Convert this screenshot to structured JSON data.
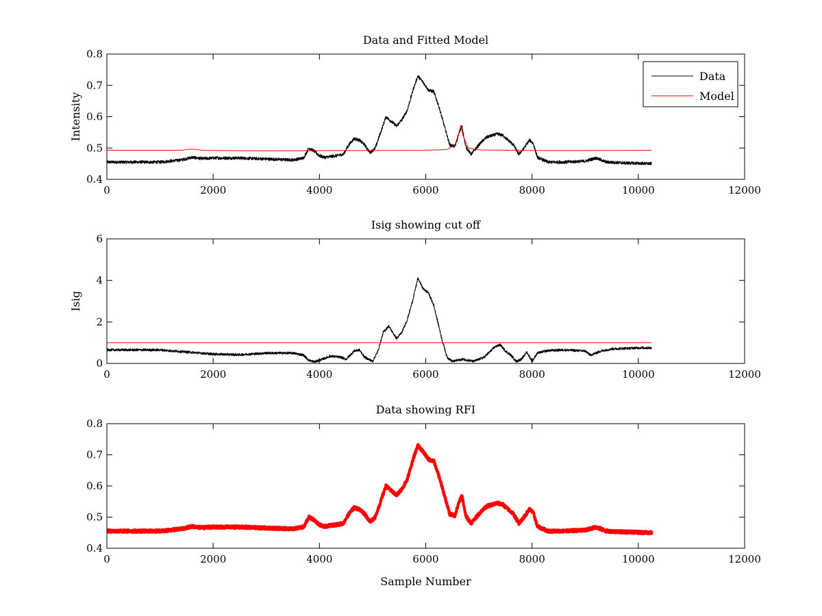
{
  "chart_data": [
    {
      "type": "line",
      "title": "Data and Fitted Model",
      "xlabel": "",
      "ylabel": "Intensity",
      "xlim": [
        0,
        12000
      ],
      "ylim": [
        0.4,
        0.8
      ],
      "xticks": [
        0,
        2000,
        4000,
        6000,
        8000,
        10000,
        12000
      ],
      "xtick_labels": [
        "0",
        "2000",
        "4000",
        "6000",
        "8000",
        "10000",
        "12000"
      ],
      "yticks": [
        0.4,
        0.5,
        0.6,
        0.7,
        0.8
      ],
      "ytick_labels": [
        "0.4",
        "0.5",
        "0.6",
        "0.7",
        "0.8"
      ],
      "legend": {
        "placement": "top-right",
        "entries": [
          "Data",
          "Model"
        ]
      },
      "grid": false,
      "series": [
        {
          "name": "Data",
          "color": "#000000",
          "noise": 0.005,
          "x": [
            0,
            500,
            1000,
            1400,
            1600,
            1800,
            2000,
            2500,
            3000,
            3500,
            3700,
            3800,
            3900,
            4000,
            4100,
            4300,
            4450,
            4550,
            4650,
            4750,
            4850,
            4950,
            5050,
            5150,
            5250,
            5350,
            5450,
            5550,
            5650,
            5750,
            5850,
            5950,
            6050,
            6150,
            6250,
            6350,
            6450,
            6550,
            6620,
            6680,
            6750,
            6850,
            6950,
            7050,
            7150,
            7250,
            7350,
            7450,
            7550,
            7650,
            7750,
            7850,
            7950,
            8020,
            8100,
            8300,
            8600,
            9000,
            9200,
            9400,
            9800,
            10250
          ],
          "values": [
            0.455,
            0.455,
            0.455,
            0.462,
            0.47,
            0.466,
            0.468,
            0.468,
            0.465,
            0.462,
            0.468,
            0.5,
            0.49,
            0.475,
            0.47,
            0.475,
            0.48,
            0.51,
            0.53,
            0.525,
            0.51,
            0.485,
            0.5,
            0.55,
            0.6,
            0.585,
            0.57,
            0.59,
            0.62,
            0.68,
            0.73,
            0.71,
            0.685,
            0.68,
            0.63,
            0.57,
            0.51,
            0.505,
            0.545,
            0.57,
            0.505,
            0.48,
            0.5,
            0.52,
            0.535,
            0.54,
            0.545,
            0.54,
            0.525,
            0.51,
            0.48,
            0.5,
            0.525,
            0.515,
            0.47,
            0.455,
            0.455,
            0.458,
            0.468,
            0.455,
            0.452,
            0.45
          ]
        },
        {
          "name": "Model",
          "color": "#ff0000",
          "noise": 0,
          "x": [
            0,
            1400,
            1600,
            1800,
            2000,
            3000,
            6000,
            6400,
            6550,
            6620,
            6660,
            6700,
            6800,
            7000,
            8000,
            9000,
            10250
          ],
          "values": [
            0.493,
            0.493,
            0.497,
            0.493,
            0.492,
            0.491,
            0.493,
            0.495,
            0.51,
            0.545,
            0.572,
            0.54,
            0.5,
            0.494,
            0.492,
            0.492,
            0.493
          ]
        }
      ]
    },
    {
      "type": "line",
      "title": "Isig showing cut off",
      "xlabel": "",
      "ylabel": "Isig",
      "xlim": [
        0,
        12000
      ],
      "ylim": [
        0,
        6
      ],
      "xticks": [
        0,
        2000,
        4000,
        6000,
        8000,
        10000,
        12000
      ],
      "xtick_labels": [
        "0",
        "2000",
        "4000",
        "6000",
        "8000",
        "10000",
        "12000"
      ],
      "yticks": [
        0,
        2,
        4,
        6
      ],
      "ytick_labels": [
        "0",
        "2",
        "4",
        "6"
      ],
      "grid": false,
      "series": [
        {
          "color": "#000000",
          "noise": 0.06,
          "x": [
            0,
            500,
            1000,
            1500,
            2000,
            2500,
            3000,
            3500,
            3700,
            3800,
            3900,
            4000,
            4200,
            4400,
            4500,
            4650,
            4750,
            4850,
            5000,
            5100,
            5200,
            5300,
            5450,
            5550,
            5650,
            5750,
            5850,
            5950,
            6050,
            6150,
            6300,
            6400,
            6500,
            6700,
            6900,
            7100,
            7300,
            7400,
            7500,
            7600,
            7700,
            7800,
            7900,
            8000,
            8100,
            8300,
            8600,
            9000,
            9100,
            9300,
            9500,
            10000,
            10250
          ],
          "values": [
            0.65,
            0.65,
            0.65,
            0.55,
            0.45,
            0.42,
            0.5,
            0.5,
            0.4,
            0.15,
            0.08,
            0.15,
            0.35,
            0.3,
            0.2,
            0.6,
            0.65,
            0.3,
            0.1,
            0.6,
            1.5,
            1.8,
            1.2,
            1.5,
            2.1,
            3.0,
            4.1,
            3.6,
            3.4,
            2.8,
            1.2,
            0.3,
            0.1,
            0.2,
            0.1,
            0.3,
            0.8,
            0.9,
            0.6,
            0.4,
            0.1,
            0.2,
            0.55,
            0.1,
            0.5,
            0.62,
            0.65,
            0.6,
            0.4,
            0.6,
            0.7,
            0.75,
            0.75
          ]
        },
        {
          "color": "#ff0000",
          "noise": 0,
          "x": [
            0,
            10250
          ],
          "values": [
            1.0,
            1.0
          ]
        }
      ]
    },
    {
      "type": "line",
      "title": "Data showing RFI",
      "xlabel": "Sample Number",
      "ylabel": "",
      "xlim": [
        0,
        12000
      ],
      "ylim": [
        0.4,
        0.8
      ],
      "xticks": [
        0,
        2000,
        4000,
        6000,
        8000,
        10000,
        12000
      ],
      "xtick_labels": [
        "0",
        "2000",
        "4000",
        "6000",
        "8000",
        "10000",
        "12000"
      ],
      "yticks": [
        0.4,
        0.5,
        0.6,
        0.7,
        0.8
      ],
      "ytick_labels": [
        "0.4",
        "0.5",
        "0.6",
        "0.7",
        "0.8"
      ],
      "grid": false,
      "series": [
        {
          "color": "#ff0000",
          "noise": 0.0045,
          "thick": true,
          "x": [
            0,
            500,
            1000,
            1400,
            1600,
            1800,
            2000,
            2500,
            3000,
            3500,
            3700,
            3800,
            3900,
            4000,
            4100,
            4300,
            4450,
            4550,
            4650,
            4750,
            4850,
            4950,
            5050,
            5150,
            5250,
            5350,
            5450,
            5550,
            5650,
            5750,
            5850,
            5950,
            6050,
            6150,
            6250,
            6350,
            6450,
            6550,
            6620,
            6680,
            6750,
            6850,
            6950,
            7050,
            7150,
            7250,
            7350,
            7450,
            7550,
            7650,
            7750,
            7850,
            7950,
            8020,
            8100,
            8300,
            8600,
            9000,
            9200,
            9400,
            9800,
            10250
          ],
          "values": [
            0.455,
            0.455,
            0.455,
            0.462,
            0.47,
            0.466,
            0.468,
            0.468,
            0.465,
            0.462,
            0.468,
            0.5,
            0.49,
            0.475,
            0.47,
            0.475,
            0.48,
            0.51,
            0.53,
            0.525,
            0.51,
            0.485,
            0.5,
            0.55,
            0.6,
            0.585,
            0.57,
            0.59,
            0.62,
            0.68,
            0.73,
            0.71,
            0.685,
            0.68,
            0.63,
            0.57,
            0.51,
            0.505,
            0.545,
            0.57,
            0.505,
            0.48,
            0.5,
            0.52,
            0.535,
            0.54,
            0.545,
            0.54,
            0.525,
            0.51,
            0.48,
            0.5,
            0.525,
            0.515,
            0.47,
            0.455,
            0.455,
            0.458,
            0.468,
            0.455,
            0.452,
            0.45
          ]
        }
      ]
    }
  ]
}
